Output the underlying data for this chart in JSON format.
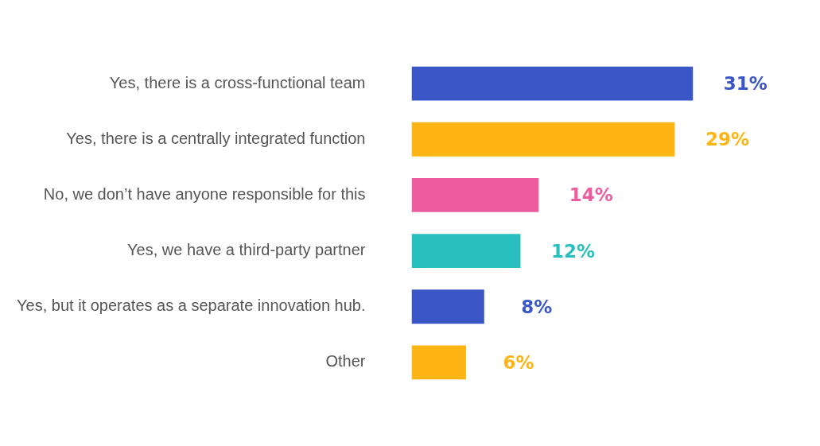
{
  "chart_data": {
    "type": "bar",
    "orientation": "horizontal",
    "categories": [
      "Yes, there is a cross-functional team",
      "Yes, there is a centrally integrated function",
      "No, we don’t have anyone responsible for this",
      "Yes, we have a third-party partner",
      "Yes, but it operates as a separate innovation hub.",
      "Other"
    ],
    "values": [
      31,
      29,
      14,
      12,
      8,
      6
    ],
    "colors": [
      "#3b56c6",
      "#fdb515",
      "#ee5ca0",
      "#29bfbf",
      "#3b56c6",
      "#fdb515"
    ],
    "value_labels": [
      "31%",
      "29%",
      "14%",
      "12%",
      "8%",
      "6%"
    ],
    "tick_labels": "y"
  }
}
